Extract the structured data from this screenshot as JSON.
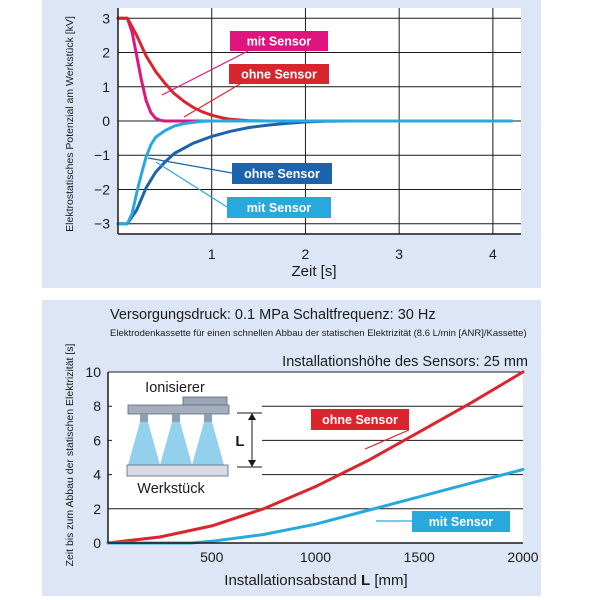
{
  "colors": {
    "panel_bg": "#dde6f7",
    "magenta": "#e0147f",
    "red": "#d9262e",
    "blue_dark": "#1c63ad",
    "cyan": "#27a9de"
  },
  "chart_data": [
    {
      "type": "line",
      "title": "",
      "xlabel": "Zeit [s]",
      "ylabel": "Elektrostatisches Potenzial am Werkstück [kV]",
      "xlim": [
        0,
        4.3
      ],
      "ylim": [
        -3.3,
        3.3
      ],
      "x_ticks": [
        1,
        2,
        3,
        4
      ],
      "x_tick_labels": [
        "1",
        "2",
        "3",
        "4"
      ],
      "y_ticks": [
        3,
        2,
        1,
        0,
        -1,
        -2,
        -3
      ],
      "y_tick_labels": [
        "3",
        "2",
        "1",
        "0",
        "−1",
        "−2",
        "−3"
      ],
      "grid": true,
      "series": [
        {
          "name": "mit Sensor",
          "color": "#e0147f",
          "x": [
            0,
            0.1,
            0.15,
            0.2,
            0.25,
            0.3,
            0.35,
            0.4,
            0.45,
            0.5,
            0.6,
            4.2
          ],
          "y": [
            3,
            3,
            2.6,
            1.9,
            1.2,
            0.6,
            0.25,
            0.08,
            0.02,
            0,
            0,
            0
          ]
        },
        {
          "name": "ohne Sensor",
          "color": "#d9262e",
          "x": [
            0,
            0.1,
            0.2,
            0.3,
            0.4,
            0.5,
            0.6,
            0.7,
            0.8,
            0.9,
            1.0,
            1.1,
            1.2,
            1.3,
            1.4,
            1.6,
            4.2
          ],
          "y": [
            3,
            3,
            2.5,
            1.9,
            1.45,
            1.1,
            0.8,
            0.58,
            0.4,
            0.27,
            0.17,
            0.1,
            0.05,
            0.03,
            0.01,
            0,
            0
          ]
        },
        {
          "name": "ohne Sensor",
          "color": "#1c63ad",
          "x": [
            0,
            0.1,
            0.2,
            0.3,
            0.4,
            0.5,
            0.6,
            0.8,
            1.0,
            1.2,
            1.4,
            1.6,
            1.8,
            2.0,
            2.2,
            2.5,
            4.2
          ],
          "y": [
            -3,
            -3,
            -2.6,
            -1.95,
            -1.5,
            -1.2,
            -0.95,
            -0.65,
            -0.45,
            -0.3,
            -0.19,
            -0.12,
            -0.07,
            -0.03,
            -0.01,
            0,
            0
          ]
        },
        {
          "name": "mit Sensor",
          "color": "#27a9de",
          "x": [
            0,
            0.1,
            0.15,
            0.2,
            0.25,
            0.3,
            0.35,
            0.4,
            0.5,
            0.6,
            0.7,
            0.8,
            0.9,
            1.0,
            4.2
          ],
          "y": [
            -3,
            -3,
            -2.7,
            -2.1,
            -1.55,
            -1.05,
            -0.7,
            -0.48,
            -0.28,
            -0.15,
            -0.08,
            -0.04,
            -0.01,
            0,
            0
          ]
        }
      ],
      "legend": [
        {
          "label": "mit Sensor",
          "color": "#e0147f"
        },
        {
          "label": "ohne Sensor",
          "color": "#d9262e"
        },
        {
          "label": "ohne Sensor",
          "color": "#1c63ad"
        },
        {
          "label": "mit Sensor",
          "color": "#27a9de"
        }
      ]
    },
    {
      "type": "line",
      "title": "Versorgungsdruck: 0.1 MPa Schaltfrequenz: 30 Hz",
      "subtitle": "Elektrodenkassette für einen schnellen Abbau der statischen Elektrizität (8.6 L/min [ANR]/Kassette)",
      "xlabel_pre": "Installationsabstand ",
      "xlabel_bold": "L",
      "xlabel_post": " [mm]",
      "ylabel": "Zeit bis zum Abbau der statischen Elektrizität [s]",
      "annotation": "Installationshöhe des Sensors: 25 mm",
      "xlim": [
        0,
        2000
      ],
      "ylim": [
        0,
        10
      ],
      "x_ticks": [
        500,
        1000,
        1500,
        2000
      ],
      "x_tick_labels": [
        "500",
        "1000",
        "1500",
        "2000"
      ],
      "y_ticks": [
        0,
        2,
        4,
        6,
        8,
        10
      ],
      "y_tick_labels": [
        "0",
        "2",
        "4",
        "6",
        "8",
        "10"
      ],
      "grid": true,
      "series": [
        {
          "name": "ohne Sensor",
          "color": "#d9262e",
          "x": [
            0,
            250,
            500,
            750,
            1000,
            1250,
            1500,
            1750,
            2000
          ],
          "y": [
            0,
            0.35,
            1.0,
            2.0,
            3.3,
            4.8,
            6.5,
            8.2,
            10.0
          ]
        },
        {
          "name": "mit Sensor",
          "color": "#27a9de",
          "x": [
            0,
            250,
            400,
            500,
            750,
            1000,
            1250,
            1500,
            1750,
            2000
          ],
          "y": [
            0,
            0,
            0,
            0.1,
            0.5,
            1.1,
            1.9,
            2.7,
            3.5,
            4.3
          ]
        }
      ],
      "legend": [
        {
          "label": "ohne Sensor",
          "color": "#d9262e"
        },
        {
          "label": "mit Sensor",
          "color": "#27a9de"
        }
      ]
    }
  ],
  "diagram": {
    "ionizer_label": "Ionisierer",
    "workpiece_label": "Werkstück",
    "distance_label": "L"
  }
}
